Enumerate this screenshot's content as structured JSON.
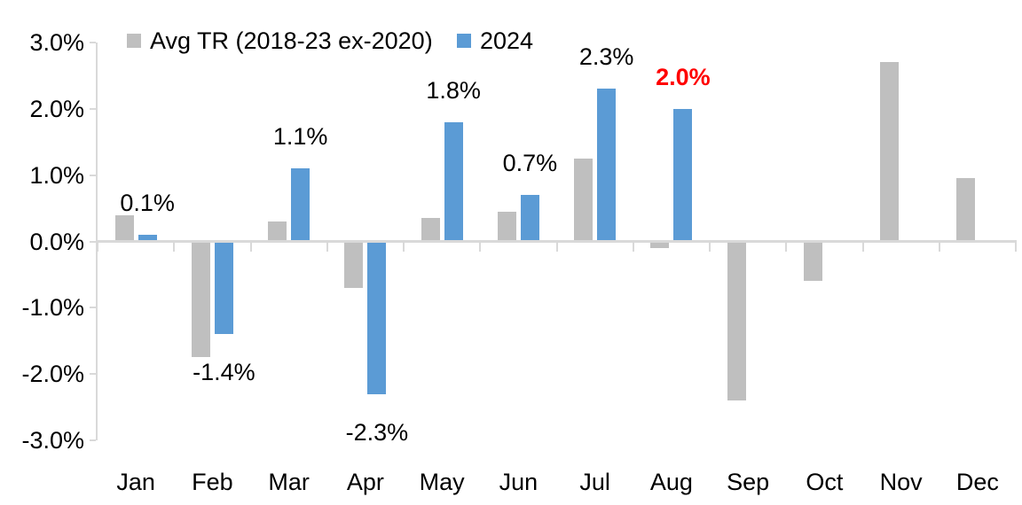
{
  "colors": {
    "gray_series": "#bfbfbf",
    "blue_series": "#5b9bd5",
    "axis": "#d9d9d9",
    "text": "#000000",
    "highlight_red": "#ff0000",
    "background": "#ffffff"
  },
  "legend": {
    "items": [
      {
        "label": "Avg TR (2018-23 ex-2020)",
        "color": "#bfbfbf"
      },
      {
        "label": "2024",
        "color": "#5b9bd5"
      }
    ],
    "position": "top"
  },
  "chart_data": {
    "type": "bar",
    "title": "",
    "categories": [
      "Jan",
      "Feb",
      "Mar",
      "Apr",
      "May",
      "Jun",
      "Jul",
      "Aug",
      "Sep",
      "Oct",
      "Nov",
      "Dec"
    ],
    "series": [
      {
        "name": "Avg TR (2018-23 ex-2020)",
        "color": "#bfbfbf",
        "values": [
          0.4,
          -1.75,
          0.3,
          -0.7,
          0.35,
          0.45,
          1.25,
          -0.1,
          -2.4,
          -0.6,
          2.7,
          0.95
        ]
      },
      {
        "name": "2024",
        "color": "#5b9bd5",
        "values": [
          0.1,
          -1.4,
          1.1,
          -2.3,
          1.8,
          0.7,
          2.3,
          2.0,
          null,
          null,
          null,
          null
        ]
      }
    ],
    "data_labels": [
      {
        "month_index": 0,
        "text": "0.1%",
        "value": 0.1,
        "color": "#000000",
        "bold": false
      },
      {
        "month_index": 1,
        "text": "-1.4%",
        "value": -1.4,
        "color": "#000000",
        "bold": false
      },
      {
        "month_index": 2,
        "text": "1.1%",
        "value": 1.1,
        "color": "#000000",
        "bold": false
      },
      {
        "month_index": 3,
        "text": "-2.3%",
        "value": -2.3,
        "color": "#000000",
        "bold": false
      },
      {
        "month_index": 4,
        "text": "1.8%",
        "value": 1.8,
        "color": "#000000",
        "bold": false
      },
      {
        "month_index": 5,
        "text": "0.7%",
        "value": 0.7,
        "color": "#000000",
        "bold": false
      },
      {
        "month_index": 6,
        "text": "2.3%",
        "value": 2.3,
        "color": "#000000",
        "bold": false
      },
      {
        "month_index": 7,
        "text": "2.0%",
        "value": 2.0,
        "color": "#ff0000",
        "bold": true
      }
    ],
    "y_ticks": [
      "3.0%",
      "2.0%",
      "1.0%",
      "0.0%",
      "-1.0%",
      "-2.0%",
      "-3.0%"
    ],
    "ylim": [
      -3.0,
      3.0
    ],
    "grid": false,
    "legend_position": "top"
  }
}
